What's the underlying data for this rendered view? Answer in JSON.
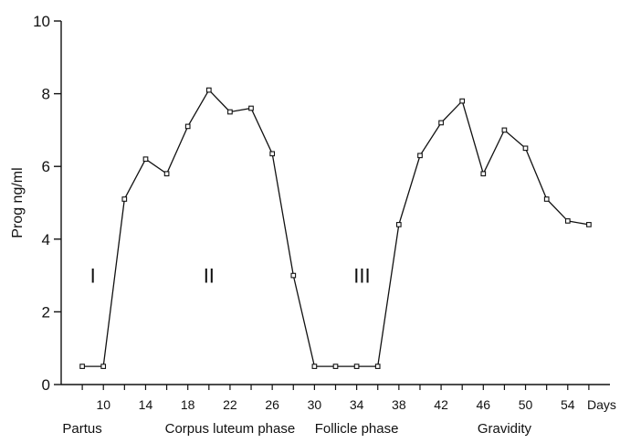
{
  "chart_data": {
    "type": "line",
    "title": "",
    "ylabel": "Prog ng/ml",
    "xlabel": "Days",
    "ylim": [
      0,
      10
    ],
    "y_ticks": [
      "0",
      "2",
      "4",
      "6",
      "8",
      "10"
    ],
    "y_tick_values": [
      0,
      2,
      4,
      6,
      8,
      10
    ],
    "xlim": [
      6,
      58
    ],
    "x_ticks": [
      "10",
      "14",
      "18",
      "22",
      "26",
      "30",
      "34",
      "38",
      "42",
      "46",
      "50",
      "54"
    ],
    "x_tick_values": [
      10,
      14,
      18,
      22,
      26,
      30,
      34,
      38,
      42,
      46,
      50,
      54
    ],
    "grid": false,
    "legend": "none",
    "series": [
      {
        "x": [
          8,
          10,
          12,
          14,
          16,
          18,
          20,
          22,
          24,
          26,
          28,
          30,
          32,
          34,
          36,
          38,
          40,
          42,
          44,
          46,
          48,
          50,
          52,
          54,
          56
        ],
        "values": [
          0.5,
          0.5,
          5.1,
          6.2,
          5.8,
          7.1,
          8.1,
          7.5,
          7.6,
          6.35,
          3.0,
          0.5,
          0.5,
          0.5,
          0.5,
          4.4,
          6.3,
          7.2,
          7.8,
          5.8,
          7.0,
          6.5,
          5.1,
          4.5,
          4.4
        ]
      }
    ],
    "phase_numerals": [
      {
        "label": "I",
        "x": 9,
        "y": 3
      },
      {
        "label": "II",
        "x": 20,
        "y": 3
      },
      {
        "label": "III",
        "x": 34.5,
        "y": 3
      }
    ],
    "phase_labels": [
      {
        "label": "Partus",
        "x": 8
      },
      {
        "label": "Corpus luteum phase",
        "x": 22
      },
      {
        "label": "Follicle phase",
        "x": 34
      },
      {
        "label": "Gravidity",
        "x": 48
      }
    ]
  }
}
